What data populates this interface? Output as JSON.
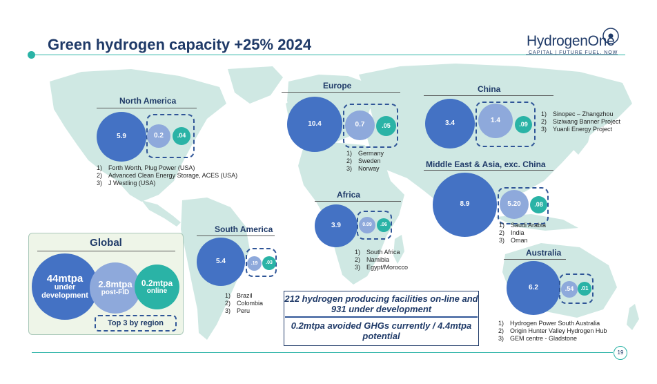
{
  "title": "Green hydrogen capacity +25% 2024",
  "logo": {
    "name": "HydrogenOne",
    "tagline": "CAPITAL  |  FUTURE FUEL. NOW"
  },
  "colors": {
    "under_development": "#4472c4",
    "post_fid": "#8ea9db",
    "online": "#2ab3a6",
    "title": "#1f3a68",
    "map": "#cfe8e3"
  },
  "chart_data": {
    "type": "bubble",
    "units": "mtpa",
    "series": [
      "under development",
      "post-FID",
      "online"
    ],
    "global": {
      "title": "Global",
      "under_development": {
        "value": "44mtpa",
        "label1": "under",
        "label2": "development"
      },
      "post_fid": {
        "value": "2.8mtpa",
        "label": "post-FID"
      },
      "online": {
        "value": "0.2mtpa",
        "label": "online"
      },
      "top3_label": "Top 3 by region"
    },
    "regions": [
      {
        "name": "North America",
        "values": [
          "5.9",
          "0.2",
          ".04"
        ],
        "top3": [
          {
            "n": "1)",
            "t": "Forth Worth, Plug Power (USA)"
          },
          {
            "n": "2)",
            "t": "Advanced Clean Energy Storage, ACES (USA)"
          },
          {
            "n": "3)",
            "t": "J Westling (USA)"
          }
        ]
      },
      {
        "name": "Europe",
        "values": [
          "10.4",
          "0.7",
          ".05"
        ],
        "top3": [
          {
            "n": "1)",
            "t": "Germany"
          },
          {
            "n": "2)",
            "t": "Sweden"
          },
          {
            "n": "3)",
            "t": "Norway"
          }
        ]
      },
      {
        "name": "China",
        "values": [
          "3.4",
          "1.4",
          ".09"
        ],
        "top3": [
          {
            "n": "1)",
            "t": "Sinopec – Zhangzhou"
          },
          {
            "n": "2)",
            "t": "Siziwang Banner Project"
          },
          {
            "n": "3)",
            "t": "Yuanli Energy Project"
          }
        ]
      },
      {
        "name": "Middle East & Asia, exc. China",
        "values": [
          "8.9",
          "5.20",
          ".08"
        ],
        "top3": [
          {
            "n": "1)",
            "t": "Saudi Arabia"
          },
          {
            "n": "2)",
            "t": "India"
          },
          {
            "n": "3)",
            "t": "Oman"
          }
        ]
      },
      {
        "name": "Africa",
        "values": [
          "3.9",
          "0.09",
          ".06"
        ],
        "top3": [
          {
            "n": "1)",
            "t": "South Africa"
          },
          {
            "n": "2)",
            "t": "Namibia"
          },
          {
            "n": "3)",
            "t": "Egypt/Morocco"
          }
        ]
      },
      {
        "name": "South America",
        "values": [
          "5.4",
          ".19",
          ".03"
        ],
        "top3": [
          {
            "n": "1)",
            "t": "Brazil"
          },
          {
            "n": "2)",
            "t": "Colombia"
          },
          {
            "n": "3)",
            "t": "Peru"
          }
        ]
      },
      {
        "name": "Australia",
        "values": [
          "6.2",
          ".54",
          ".01"
        ],
        "top3": [
          {
            "n": "1)",
            "t": "Hydrogen Power South Australia"
          },
          {
            "n": "2)",
            "t": "Origin Hunter Valley Hydrogen Hub"
          },
          {
            "n": "3)",
            "t": "GEM centre - Gladstone"
          }
        ]
      }
    ]
  },
  "info": {
    "facilities": "212 hydrogen producing facilities on-line and 931 under development",
    "ghg": "0.2mtpa avoided GHGs currently / 4.4mtpa potential"
  },
  "page_number": "19"
}
